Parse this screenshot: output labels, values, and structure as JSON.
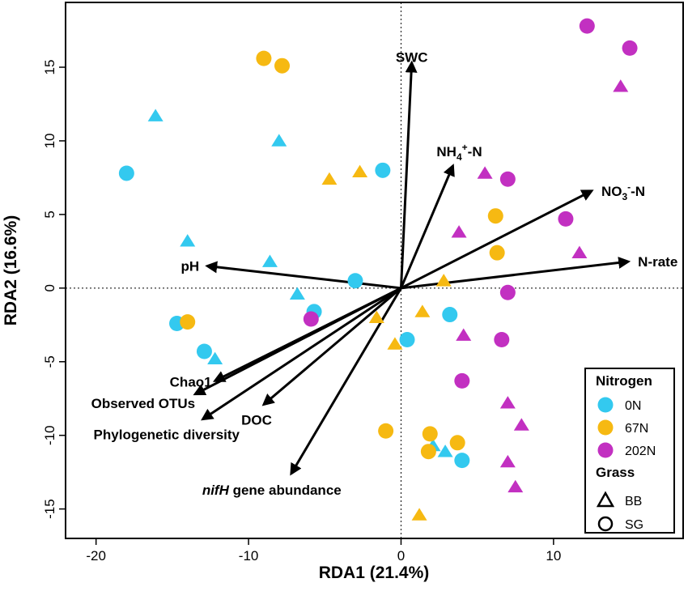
{
  "chart_data": {
    "type": "scatter",
    "xlabel": "RDA1 (21.4%)",
    "ylabel": "RDA2 (16.6%)",
    "xlim": [
      -22,
      18.5
    ],
    "ylim": [
      -17,
      19.4
    ],
    "xticks": [
      "-20",
      "-10",
      "0",
      "10"
    ],
    "yticks": [
      "-15",
      "-10",
      "-5",
      "0",
      "5",
      "10",
      "15"
    ],
    "xtick_values": [
      -20,
      -10,
      0,
      10
    ],
    "ytick_values": [
      -15,
      -10,
      -5,
      0,
      5,
      10,
      15
    ],
    "reference_lines": {
      "x": 0,
      "y": 0,
      "style": "dotted"
    },
    "colors": {
      "0N": "#33c9ef",
      "67N": "#f6b912",
      "202N": "#c230c1"
    },
    "legend": {
      "position": "bottom-right",
      "nitrogen_title": "Nitrogen",
      "nitrogen_items": [
        {
          "label": "0N",
          "key": "0N"
        },
        {
          "label": "67N",
          "key": "67N"
        },
        {
          "label": "202N",
          "key": "202N"
        }
      ],
      "grass_title": "Grass",
      "grass_items": [
        {
          "label": "BB",
          "shape": "triangle"
        },
        {
          "label": "SG",
          "shape": "circle"
        }
      ]
    },
    "arrows": [
      {
        "label": "SWC",
        "x": 0.7,
        "y": 15.3
      },
      {
        "label_parts": [
          "NH",
          "4",
          "+",
          "-N"
        ],
        "x": 3.4,
        "y": 8.3
      },
      {
        "label_parts": [
          "NO",
          "3",
          "-",
          "-N"
        ],
        "x": 12.5,
        "y": 6.6
      },
      {
        "label": "N-rate",
        "x": 14.9,
        "y": 1.8
      },
      {
        "label": "pH",
        "x": -12.7,
        "y": 1.5
      },
      {
        "label": "Chao1",
        "x": -12.2,
        "y": -6.3
      },
      {
        "label": "Observed OTUs",
        "x": -13.5,
        "y": -7.2
      },
      {
        "label": "DOC",
        "x": -9.0,
        "y": -7.9
      },
      {
        "label": "Phylogenetic diversity",
        "x": -13.0,
        "y": -8.9
      },
      {
        "label_italic": "nifH",
        "label_rest": " gene abundance",
        "x": -7.2,
        "y": -12.6
      }
    ],
    "series": [
      {
        "name": "0N",
        "shape": "circle",
        "points": [
          [
            -18.0,
            7.8
          ],
          [
            -1.2,
            8.0
          ],
          [
            -3.0,
            0.5
          ],
          [
            -5.7,
            -1.6
          ],
          [
            -14.7,
            -2.4
          ],
          [
            -12.9,
            -4.3
          ],
          [
            3.2,
            -1.8
          ],
          [
            0.4,
            -3.5
          ],
          [
            4.0,
            -11.7
          ]
        ]
      },
      {
        "name": "0N",
        "shape": "triangle",
        "points": [
          [
            -16.1,
            11.7
          ],
          [
            -8.0,
            10.0
          ],
          [
            -14.0,
            3.2
          ],
          [
            -8.6,
            1.8
          ],
          [
            -6.8,
            -0.4
          ],
          [
            -12.2,
            -4.8
          ],
          [
            2.1,
            -10.7
          ],
          [
            2.9,
            -11.1
          ]
        ]
      },
      {
        "name": "67N",
        "shape": "circle",
        "points": [
          [
            -9.0,
            15.6
          ],
          [
            -7.8,
            15.1
          ],
          [
            6.2,
            4.9
          ],
          [
            6.3,
            2.4
          ],
          [
            -14.0,
            -2.3
          ],
          [
            -1.0,
            -9.7
          ],
          [
            1.9,
            -9.9
          ],
          [
            3.7,
            -10.5
          ],
          [
            1.8,
            -11.1
          ]
        ]
      },
      {
        "name": "67N",
        "shape": "triangle",
        "points": [
          [
            -4.7,
            7.4
          ],
          [
            -2.7,
            7.9
          ],
          [
            2.8,
            0.5
          ],
          [
            1.4,
            -1.6
          ],
          [
            -1.6,
            -2.0
          ],
          [
            -0.4,
            -3.8
          ],
          [
            1.2,
            -15.4
          ]
        ]
      },
      {
        "name": "202N",
        "shape": "circle",
        "points": [
          [
            12.2,
            17.8
          ],
          [
            15.0,
            16.3
          ],
          [
            7.0,
            7.4
          ],
          [
            10.8,
            4.7
          ],
          [
            7.0,
            -0.3
          ],
          [
            -5.9,
            -2.1
          ],
          [
            6.6,
            -3.5
          ],
          [
            4.0,
            -6.3
          ]
        ]
      },
      {
        "name": "202N",
        "shape": "triangle",
        "points": [
          [
            14.4,
            13.7
          ],
          [
            5.5,
            7.8
          ],
          [
            3.8,
            3.8
          ],
          [
            11.7,
            2.4
          ],
          [
            4.1,
            -3.2
          ],
          [
            7.0,
            -7.8
          ],
          [
            7.9,
            -9.3
          ],
          [
            7.0,
            -11.8
          ],
          [
            7.5,
            -13.5
          ]
        ]
      }
    ]
  }
}
